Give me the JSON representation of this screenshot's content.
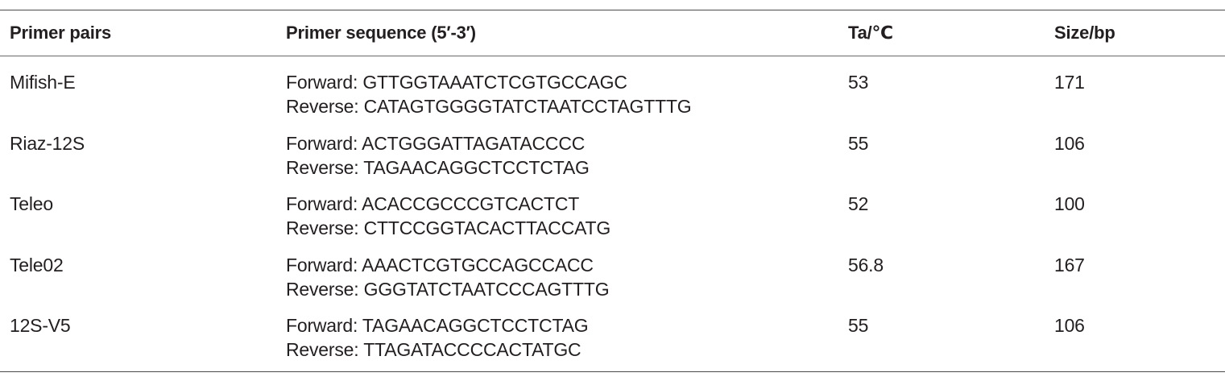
{
  "table": {
    "headers": [
      "Primer pairs",
      "Primer sequence (5′-3′)",
      "Ta/℃",
      "Size/bp"
    ],
    "rows": [
      {
        "primer": "Mifish-E",
        "forward": "Forward: GTTGGTAAATCTCGTGCCAGC",
        "reverse": "Reverse: CATAGTGGGGTATCTAATCCTAGTTTG",
        "ta": "53",
        "size": "171"
      },
      {
        "primer": "Riaz-12S",
        "forward": "Forward: ACTGGGATTAGATACCCC",
        "reverse": "Reverse: TAGAACAGGCTCCTCTAG",
        "ta": "55",
        "size": "106"
      },
      {
        "primer": "Teleo",
        "forward": "Forward: ACACCGCCCGTCACTCT",
        "reverse": "Reverse: CTTCCGGTACACTTACCATG",
        "ta": "52",
        "size": "100"
      },
      {
        "primer": "Tele02",
        "forward": "Forward: AAACTCGTGCCAGCCACC",
        "reverse": "Reverse: GGGTATCTAATCCCAGTTTG",
        "ta": "56.8",
        "size": "167"
      },
      {
        "primer": "12S-V5",
        "forward": "Forward: TAGAACAGGCTCCTCTAG",
        "reverse": "Reverse: TTAGATACCCCACTATGC",
        "ta": "55",
        "size": "106"
      }
    ]
  }
}
